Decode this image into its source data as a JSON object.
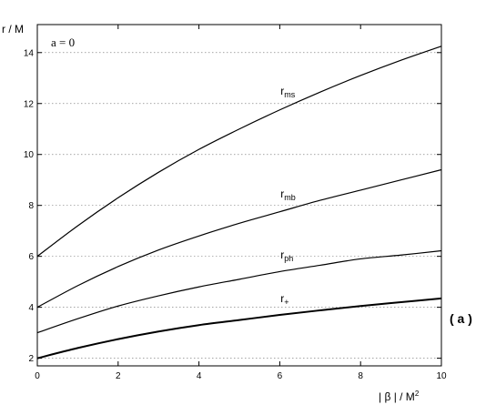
{
  "chart_data": {
    "type": "line",
    "xlabel": "| β | / M",
    "xlabel_sup": "2",
    "ylabel": "r  / M",
    "annotation": "a = 0",
    "panel_label": "( a )",
    "xlim": [
      0,
      10
    ],
    "ylim": [
      1.7,
      15.1
    ],
    "xticks": [
      "0",
      "2",
      "4",
      "6",
      "8",
      "10"
    ],
    "yticks": [
      "2",
      "4",
      "6",
      "8",
      "10",
      "12",
      "14"
    ],
    "grid_y": true,
    "x": [
      0,
      1,
      2,
      3,
      4,
      5,
      6,
      7,
      8,
      9,
      10
    ],
    "series": [
      {
        "name": "r",
        "sub": "ms",
        "values": [
          6.0,
          7.2,
          8.3,
          9.3,
          10.2,
          11.0,
          11.75,
          12.45,
          13.1,
          13.7,
          14.25
        ]
      },
      {
        "name": "r",
        "sub": "mb",
        "values": [
          4.0,
          4.85,
          5.6,
          6.25,
          6.8,
          7.3,
          7.75,
          8.2,
          8.6,
          9.0,
          9.4
        ]
      },
      {
        "name": "r",
        "sub": "ph",
        "values": [
          3.0,
          3.55,
          4.05,
          4.45,
          4.8,
          5.1,
          5.4,
          5.65,
          5.9,
          6.05,
          6.22
        ]
      },
      {
        "name": "r",
        "sub": "+",
        "values": [
          2.0,
          2.4,
          2.75,
          3.05,
          3.3,
          3.5,
          3.7,
          3.88,
          4.05,
          4.2,
          4.35
        ]
      }
    ]
  }
}
